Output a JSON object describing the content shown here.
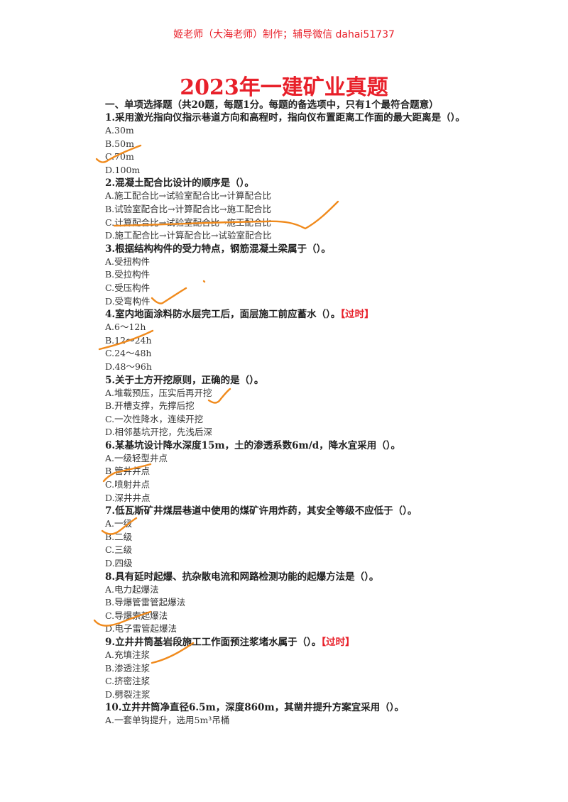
{
  "header": "姬老师（大海老师）制作；辅导微信 dahai51737",
  "title": "2023年一建矿业真题",
  "section": "一、单项选择题（共20题，每题1分。每题的备选项中，只有1个最符合题意）",
  "questions": [
    {
      "stem": "1.采用激光指向仪指示巷道方向和高程时，指向仪布置距离工作面的最大距离是（）。",
      "tag": "",
      "options": [
        "A.30m",
        "B.50m",
        "C.70m",
        "D.100m"
      ]
    },
    {
      "stem": "2.混凝土配合比设计的顺序是（）。",
      "tag": "",
      "options": [
        "A.施工配合比→试验室配合比→计算配合比",
        "B.试验室配合比→计算配合比→施工配合比",
        "C.计算配合比→试验室配合比→施工配合比",
        "D.施工配合比→计算配合比→试验室配合比"
      ]
    },
    {
      "stem": "3.根据结构构件的受力特点，钢筋混凝土梁属于（）。",
      "tag": "",
      "options": [
        "A.受扭构件",
        "B.受拉构件",
        "C.受压构件",
        "D.受弯构件"
      ]
    },
    {
      "stem": "4.室内地面涂料防水层完工后，面层施工前应蓄水（）。",
      "tag": "【过时】",
      "options": [
        "A.6～12h",
        "B.12～24h",
        "C.24～48h",
        "D.48～96h"
      ]
    },
    {
      "stem": "5.关于土方开挖原则，正确的是（）。",
      "tag": "",
      "options": [
        "A.堆载预压，压实后再开挖",
        "B.开槽支撑，先撑后挖",
        "C.一次性降水，连续开挖",
        "D.相邻基坑开挖，先浅后深"
      ]
    },
    {
      "stem": "6.某基坑设计降水深度15m，土的渗透系数6m/d，降水宜采用（）。",
      "tag": "",
      "options": [
        "A.一级轻型井点",
        "B.管井井点",
        "C.喷射井点",
        "D.深井井点"
      ]
    },
    {
      "stem": "7.低瓦斯矿井煤层巷道中使用的煤矿许用炸药，其安全等级不应低于（）。",
      "tag": "",
      "options": [
        "A.一级",
        "B.二级",
        "C.三级",
        "D.四级"
      ]
    },
    {
      "stem": "8.具有延时起爆、抗杂散电流和网路检测功能的起爆方法是（）。",
      "tag": "",
      "options": [
        "A.电力起爆法",
        "B.导爆管雷管起爆法",
        "C.导爆索起爆法",
        "D.电子雷管起爆法"
      ]
    },
    {
      "stem": "9.立井井筒基岩段施工工作面预注浆堵水属于（）。",
      "tag": "【过时】",
      "options": [
        "A.充填注浆",
        "B.渗透注浆",
        "C.挤密注浆",
        "D.劈裂注浆"
      ]
    },
    {
      "stem": "10.立井井筒净直径6.5m，深度860m，其凿井提升方案宜采用（）。",
      "tag": "",
      "options": [
        "A.一套单钩提升，选用5m³吊桶"
      ]
    }
  ]
}
